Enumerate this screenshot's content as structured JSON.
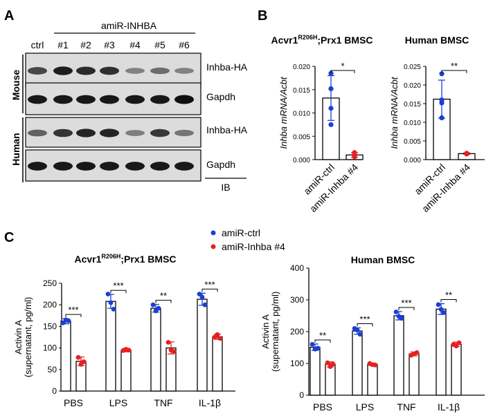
{
  "panelA": {
    "letter": "A",
    "group_label": "amiR-INHBA",
    "lanes": [
      "ctrl",
      "#1",
      "#2",
      "#3",
      "#4",
      "#5",
      "#6"
    ],
    "highlight_lane": "#4",
    "highlight_color": "#e8201f",
    "row_labels": [
      "Mouse",
      "Human"
    ],
    "blots": [
      {
        "label": "Inhba-HA",
        "intensity": [
          0.7,
          0.92,
          0.85,
          0.82,
          0.38,
          0.5,
          0.38
        ]
      },
      {
        "label": "Gapdh",
        "intensity": [
          0.95,
          0.95,
          0.95,
          0.95,
          0.95,
          0.95,
          1.0
        ]
      },
      {
        "label": "Inhba-HA",
        "intensity": [
          0.55,
          0.8,
          0.88,
          0.88,
          0.4,
          0.78,
          0.45
        ]
      },
      {
        "label": "Gapdh",
        "intensity": [
          0.95,
          0.95,
          0.95,
          0.95,
          0.95,
          0.95,
          0.95
        ]
      }
    ],
    "ib_label": "IB"
  },
  "panelB": {
    "letter": "B"
  },
  "panelC": {
    "letter": "C",
    "legend": [
      {
        "label": "amiR-ctrl",
        "color": "#1a3fd6"
      },
      {
        "label": "amiR-Inhba #4",
        "color": "#e8201f"
      }
    ]
  },
  "colors": {
    "ctrl": "#1a3fd6",
    "kd": "#e8201f"
  },
  "chart_data": [
    {
      "type": "bar",
      "title": "Acvr1R206H;Prx1 BMSC",
      "title_main": "Acvr1",
      "title_sup": "R206H",
      "title_rest": ";Prx1 BMSC",
      "ylabel": "Inhba mRNA/Acbt",
      "ylim": [
        0,
        0.02
      ],
      "yticks": [
        "0.000",
        "0.005",
        "0.010",
        "0.015",
        "0.020"
      ],
      "categories": [
        "amiR-ctrl",
        "amiR-Inhba #4"
      ],
      "values": [
        0.0132,
        0.001
      ],
      "errors": [
        0.0048,
        0.0005
      ],
      "points": [
        [
          0.0185,
          0.011,
          0.0075,
          0.0152
        ],
        [
          0.0015,
          0.0008,
          0.0006,
          0.0011
        ]
      ],
      "significance": "*"
    },
    {
      "type": "bar",
      "title": "Human BMSC",
      "ylabel": "Inhba mRNA/Acbt",
      "ylim": [
        0,
        0.025
      ],
      "yticks": [
        "0.000",
        "0.005",
        "0.010",
        "0.015",
        "0.020",
        "0.025"
      ],
      "categories": [
        "amiR-ctrl",
        "amiR-Inhba #4"
      ],
      "values": [
        0.0162,
        0.0016
      ],
      "errors": [
        0.0051,
        0.0002
      ],
      "points": [
        [
          0.023,
          0.0152,
          0.0112,
          0.016
        ],
        [
          0.0016,
          0.0015,
          0.0017,
          0.0016
        ]
      ],
      "significance": "**"
    },
    {
      "type": "bar",
      "title": "Acvr1R206H;Prx1 BMSC",
      "title_main": "Acvr1",
      "title_sup": "R206H",
      "title_rest": ";Prx1 BMSC",
      "ylabel": "Activin A",
      "ylabel2": "(supernatant, pg/ml)",
      "ylim": [
        0,
        250
      ],
      "yticks": [
        "0",
        "50",
        "100",
        "150",
        "200",
        "250"
      ],
      "categories": [
        "PBS",
        "LPS",
        "TNF",
        "IL-1β"
      ],
      "series": [
        {
          "values": [
            162,
            208,
            192,
            213
          ],
          "errors": [
            6,
            16,
            9,
            14
          ],
          "points": [
            [
              158,
              165,
              163
            ],
            [
              225,
              205,
              190
            ],
            [
              200,
              186,
              192
            ],
            [
              225,
              218,
              200
            ]
          ]
        },
        {
          "values": [
            69,
            95,
            100,
            126
          ],
          "errors": [
            10,
            4,
            14,
            6
          ],
          "points": [
            [
              78,
              62,
              68
            ],
            [
              94,
              97,
              95
            ],
            [
              113,
              95,
              92
            ],
            [
              125,
              131,
              122
            ]
          ]
        }
      ],
      "significance": [
        "***",
        "***",
        "**",
        "***"
      ]
    },
    {
      "type": "bar",
      "title": "Human BMSC",
      "ylabel": "Activin A",
      "ylabel2": "(supernatant, pg/ml)",
      "ylim": [
        0,
        400
      ],
      "yticks": [
        "0",
        "100",
        "200",
        "300",
        "400"
      ],
      "categories": [
        "PBS",
        "LPS",
        "TNF",
        "IL-1β"
      ],
      "series": [
        {
          "values": [
            151,
            202,
            250,
            271
          ],
          "errors": [
            10,
            10,
            13,
            17
          ],
          "points": [
            [
              160,
              145,
              148
            ],
            [
              210,
              205,
              192
            ],
            [
              262,
              248,
              242
            ],
            [
              285,
              270,
              260
            ]
          ]
        },
        {
          "values": [
            97,
            97,
            130,
            160
          ],
          "errors": [
            8,
            4,
            6,
            7
          ],
          "points": [
            [
              102,
              90,
              98
            ],
            [
              100,
              96,
              95
            ],
            [
              126,
              130,
              134
            ],
            [
              160,
              155,
              165
            ]
          ]
        }
      ],
      "significance": [
        "**",
        "***",
        "***",
        "**"
      ]
    }
  ]
}
